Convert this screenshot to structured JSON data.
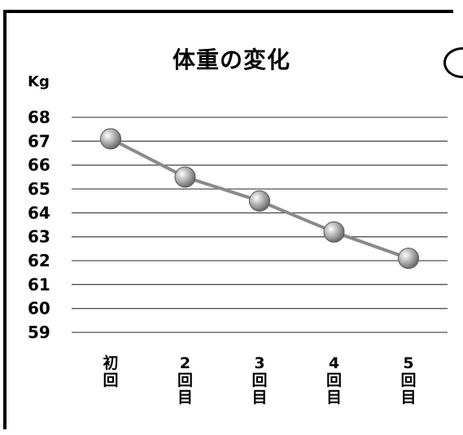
{
  "chart_data": {
    "type": "line",
    "title": "体重の変化",
    "ylabel": "Kg",
    "xlabel": "",
    "categories": [
      "初回",
      "2回目",
      "3回目",
      "4回目",
      "5回目"
    ],
    "series": [
      {
        "values": [
          67.1,
          65.5,
          64.5,
          63.2,
          62.1
        ]
      }
    ],
    "ylim": [
      59,
      68
    ],
    "yticks": [
      68,
      67,
      66,
      65,
      64,
      63,
      62,
      61,
      60,
      59
    ],
    "grid": true,
    "colors": {
      "line": "#8a8a8a",
      "marker": "#a9a9a9",
      "grid": "#555555"
    }
  }
}
